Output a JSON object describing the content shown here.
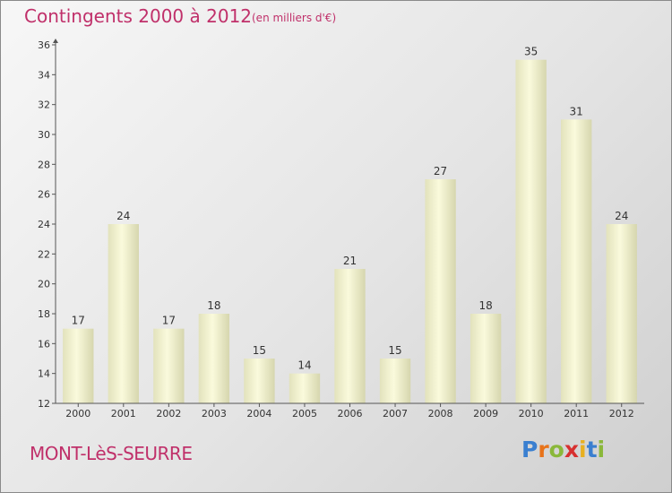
{
  "title": "Contingents 2000 à 2012",
  "subtitle": "(en milliers d'€)",
  "place": "MONT-LèS-SEURRE",
  "logo": {
    "letters": [
      "P",
      "r",
      "o",
      "x",
      "i",
      "t",
      "i"
    ],
    "colors": [
      "#3a7fd0",
      "#e8731a",
      "#8ab83a",
      "#d73030",
      "#e8b020",
      "#3a7fd0",
      "#8ab83a"
    ]
  },
  "colors": {
    "accent": "#c0306a",
    "bar_light": "#fbfbe0",
    "bar_dark": "#d8d8b0"
  },
  "chart_data": {
    "type": "bar",
    "categories": [
      "2000",
      "2001",
      "2002",
      "2003",
      "2004",
      "2005",
      "2006",
      "2007",
      "2008",
      "2009",
      "2010",
      "2011",
      "2012"
    ],
    "values": [
      17,
      24,
      17,
      18,
      15,
      14,
      21,
      15,
      27,
      18,
      35,
      31,
      24
    ],
    "ylim": [
      12,
      36
    ],
    "yticks": [
      12,
      14,
      16,
      18,
      20,
      22,
      24,
      26,
      28,
      30,
      32,
      34,
      36
    ],
    "xlabel": "",
    "ylabel": "",
    "grid": false,
    "data_labels": true
  }
}
